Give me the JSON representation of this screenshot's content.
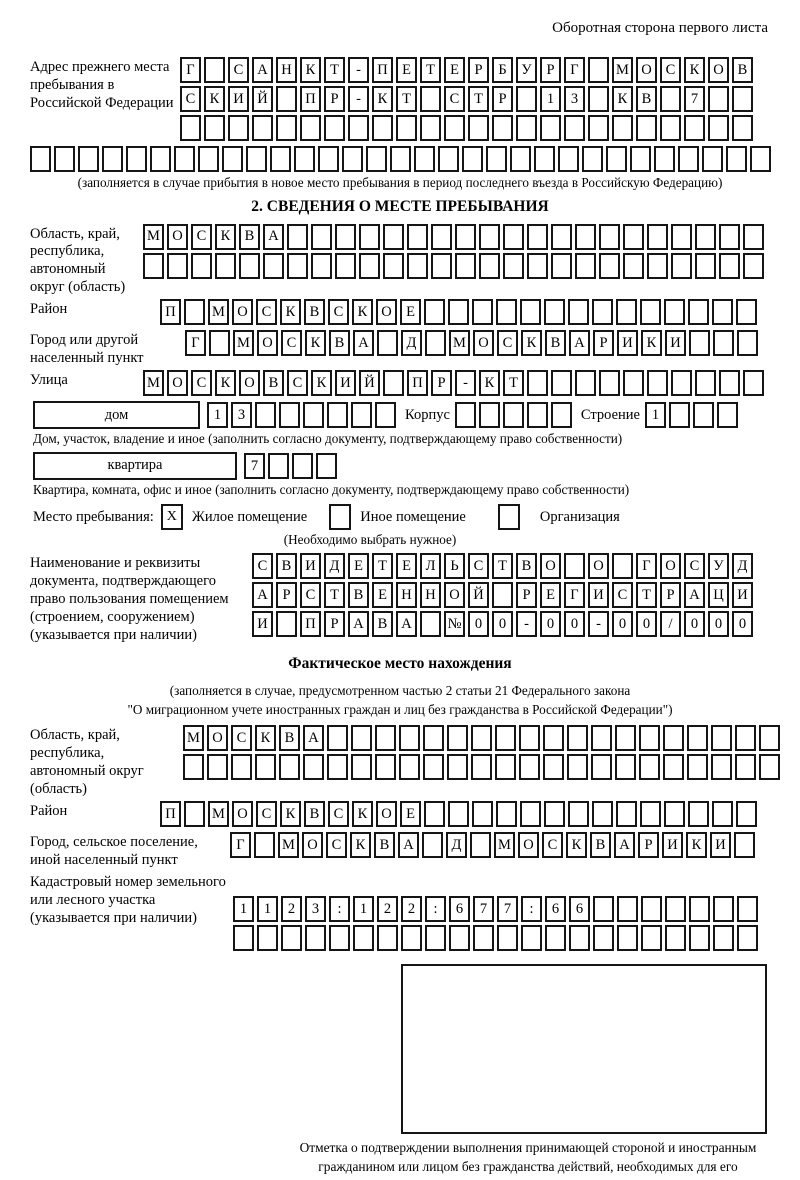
{
  "header": {
    "note": "Оборотная сторона первого листа"
  },
  "prev_address": {
    "label": "Адрес прежнего места пребывания в Российской Федерации",
    "rows": [
      {
        "size": 24,
        "chars": [
          "Г",
          "",
          "С",
          "А",
          "Н",
          "К",
          "Т",
          "-",
          "П",
          "Е",
          "Т",
          "Е",
          "Р",
          "Б",
          "У",
          "Р",
          "Г",
          "",
          "М",
          "О",
          "С",
          "К",
          "О",
          "В"
        ]
      },
      {
        "size": 24,
        "chars": [
          "С",
          "К",
          "И",
          "Й",
          "",
          "П",
          "Р",
          "-",
          "К",
          "Т",
          "",
          "С",
          "Т",
          "Р",
          "",
          "1",
          "3",
          "",
          "К",
          "В",
          "",
          "7",
          "",
          ""
        ]
      },
      {
        "size": 24,
        "chars": []
      }
    ],
    "overflow_row": {
      "size": 31,
      "chars": []
    },
    "note": "(заполняется в случае прибытия в новое место пребывания в период последнего въезда в Российскую Федерацию)"
  },
  "section2": {
    "title": "2. СВЕДЕНИЯ О МЕСТЕ ПРЕБЫВАНИЯ",
    "region": {
      "label": "Область, край, республика, автономный округ (область)",
      "rows": [
        {
          "size": 26,
          "chars": [
            "М",
            "О",
            "С",
            "К",
            "В",
            "А"
          ]
        },
        {
          "size": 26,
          "chars": []
        }
      ]
    },
    "district": {
      "label": "Район",
      "row": {
        "size": 25,
        "chars": [
          "П",
          "",
          "М",
          "О",
          "С",
          "К",
          "В",
          "С",
          "К",
          "О",
          "Е"
        ]
      }
    },
    "city": {
      "label": "Город или другой населенный пункт",
      "row": {
        "size": 24,
        "chars": [
          "Г",
          "",
          "М",
          "О",
          "С",
          "К",
          "В",
          "А",
          "",
          "Д",
          "",
          "М",
          "О",
          "С",
          "К",
          "В",
          "А",
          "Р",
          "И",
          "К",
          "И"
        ]
      }
    },
    "street": {
      "label": "Улица",
      "row": {
        "size": 26,
        "chars": [
          "М",
          "О",
          "С",
          "К",
          "О",
          "В",
          "С",
          "К",
          "И",
          "Й",
          "",
          "П",
          "Р",
          "-",
          "К",
          "Т"
        ]
      }
    },
    "house": {
      "type_label": "дом",
      "number_cells": {
        "size": 8,
        "chars": [
          "1",
          "3"
        ]
      },
      "korpus_label": "Корпус",
      "korpus_cells": {
        "size": 5,
        "chars": []
      },
      "stroenie_label": "Строение",
      "stroenie_cells": {
        "size": 4,
        "chars": [
          "1"
        ]
      },
      "note": "Дом, участок, владение и иное (заполнить согласно документу, подтверждающему право собственности)"
    },
    "apartment": {
      "type_label": "квартира",
      "cells": {
        "size": 4,
        "chars": [
          "7"
        ]
      },
      "note": "Квартира, комната, офис и иное (заполнить согласно документу, подтверждающему право собственности)"
    },
    "stay_type": {
      "label": "Место пребывания:",
      "options": [
        {
          "mark": "X",
          "label": "Жилое помещение"
        },
        {
          "mark": "",
          "label": "Иное помещение"
        },
        {
          "mark": "",
          "label": "Организация"
        }
      ],
      "note": "(Необходимо выбрать нужное)"
    },
    "document": {
      "label": "Наименование и реквизиты документа, подтверждающего право пользования помещением (строением, сооружением) (указывается при наличии)",
      "rows": [
        {
          "size": 21,
          "chars": [
            "С",
            "В",
            "И",
            "Д",
            "Е",
            "Т",
            "Е",
            "Л",
            "Ь",
            "С",
            "Т",
            "В",
            "О",
            "",
            "О",
            "",
            "Г",
            "О",
            "С",
            "У",
            "Д"
          ]
        },
        {
          "size": 21,
          "chars": [
            "А",
            "Р",
            "С",
            "Т",
            "В",
            "Е",
            "Н",
            "Н",
            "О",
            "Й",
            "",
            "Р",
            "Е",
            "Г",
            "И",
            "С",
            "Т",
            "Р",
            "А",
            "Ц",
            "И"
          ]
        },
        {
          "size": 21,
          "chars": [
            "И",
            "",
            "П",
            "Р",
            "А",
            "В",
            "А",
            "",
            "№",
            "0",
            "0",
            "-",
            "0",
            "0",
            "-",
            "0",
            "0",
            "/",
            "0",
            "0",
            "0"
          ]
        }
      ]
    }
  },
  "actual_location": {
    "title": "Фактическое место нахождения",
    "note_line1": "(заполняется в случае, предусмотренном частью 2 статьи 21 Федерального закона",
    "note_line2": "\"О миграционном учете иностранных граждан и лиц без гражданства в Российской Федерации\")",
    "region": {
      "label": "Область, край, республика, автономный округ (область)",
      "rows": [
        {
          "size": 25,
          "chars": [
            "М",
            "О",
            "С",
            "К",
            "В",
            "А"
          ]
        },
        {
          "size": 25,
          "chars": []
        }
      ]
    },
    "district": {
      "label": "Район",
      "row": {
        "size": 25,
        "chars": [
          "П",
          "",
          "М",
          "О",
          "С",
          "К",
          "В",
          "С",
          "К",
          "О",
          "Е"
        ]
      }
    },
    "city": {
      "label": "Город, сельское поселение, иной населенный пункт",
      "row": {
        "size": 22,
        "chars": [
          "Г",
          "",
          "М",
          "О",
          "С",
          "К",
          "В",
          "А",
          "",
          "Д",
          "",
          "М",
          "О",
          "С",
          "К",
          "В",
          "А",
          "Р",
          "И",
          "К",
          "И"
        ]
      }
    },
    "cadastral": {
      "label": "Кадастровый номер земельного или лесного участка (указывается при наличии)",
      "rows": [
        {
          "size": 22,
          "chars": [
            "1",
            "1",
            "2",
            "3",
            ":",
            "1",
            "2",
            "2",
            ":",
            "6",
            "7",
            "7",
            ":",
            "6",
            "6"
          ]
        },
        {
          "size": 22,
          "chars": []
        }
      ]
    },
    "stamp_caption": "Отметка о подтверждении выполнения принимающей стороной и иностранным гражданином или лицом без гражданства действий, необходимых для его постановки на учет по месту пребывания"
  }
}
